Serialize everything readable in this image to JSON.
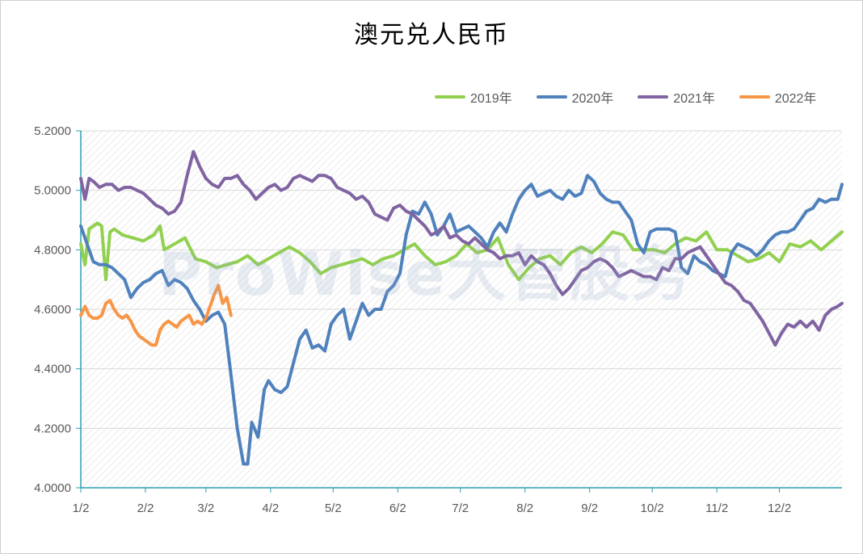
{
  "chart_data": {
    "type": "line",
    "title": "澳元兑人民币",
    "watermark": "ProWise大智股务",
    "xlabel": "",
    "ylabel": "",
    "ylim": [
      4.0,
      5.2
    ],
    "x_domain": [
      0,
      365
    ],
    "y_ticks": [
      "4.0000",
      "4.2000",
      "4.4000",
      "4.6000",
      "4.8000",
      "5.0000",
      "5.2000"
    ],
    "y_tick_values": [
      4.0,
      4.2,
      4.4,
      4.6,
      4.8,
      5.0,
      5.2
    ],
    "x_ticks": [
      "1/2",
      "2/2",
      "3/2",
      "4/2",
      "5/2",
      "6/2",
      "7/2",
      "8/2",
      "9/2",
      "10/2",
      "11/2",
      "12/2"
    ],
    "x_tick_days": [
      0,
      31,
      60,
      91,
      121,
      152,
      182,
      213,
      244,
      274,
      305,
      335
    ],
    "legend": "top-right",
    "series": [
      {
        "name": "2019年",
        "color": "#92d050",
        "x": [
          0,
          2,
          4,
          6,
          8,
          10,
          12,
          14,
          16,
          18,
          20,
          25,
          30,
          35,
          38,
          40,
          45,
          50,
          55,
          60,
          65,
          70,
          75,
          80,
          85,
          90,
          95,
          100,
          105,
          110,
          115,
          120,
          125,
          130,
          135,
          140,
          145,
          150,
          155,
          160,
          165,
          170,
          175,
          180,
          185,
          190,
          195,
          200,
          205,
          210,
          215,
          220,
          225,
          230,
          235,
          240,
          245,
          250,
          255,
          260,
          265,
          270,
          275,
          280,
          285,
          290,
          295,
          300,
          305,
          310,
          315,
          320,
          325,
          330,
          335,
          340,
          345,
          350,
          355,
          360,
          365
        ],
        "values": [
          4.82,
          4.75,
          4.87,
          4.88,
          4.89,
          4.88,
          4.7,
          4.86,
          4.87,
          4.86,
          4.85,
          4.84,
          4.83,
          4.85,
          4.88,
          4.8,
          4.82,
          4.84,
          4.77,
          4.76,
          4.74,
          4.75,
          4.76,
          4.78,
          4.75,
          4.77,
          4.79,
          4.81,
          4.79,
          4.76,
          4.72,
          4.74,
          4.75,
          4.76,
          4.77,
          4.75,
          4.77,
          4.78,
          4.8,
          4.82,
          4.78,
          4.75,
          4.76,
          4.78,
          4.82,
          4.79,
          4.8,
          4.84,
          4.75,
          4.7,
          4.74,
          4.77,
          4.78,
          4.75,
          4.79,
          4.81,
          4.79,
          4.82,
          4.86,
          4.85,
          4.8,
          4.8,
          4.8,
          4.79,
          4.82,
          4.84,
          4.83,
          4.86,
          4.8,
          4.8,
          4.78,
          4.76,
          4.77,
          4.79,
          4.76,
          4.82,
          4.81,
          4.83,
          4.8,
          4.83,
          4.86
        ]
      },
      {
        "name": "2020年",
        "color": "#4f81bd",
        "x": [
          0,
          3,
          6,
          9,
          12,
          15,
          18,
          21,
          24,
          27,
          30,
          33,
          36,
          39,
          42,
          45,
          48,
          51,
          54,
          57,
          60,
          63,
          66,
          69,
          72,
          75,
          78,
          80,
          82,
          85,
          88,
          90,
          93,
          96,
          99,
          102,
          105,
          108,
          111,
          114,
          117,
          120,
          123,
          126,
          129,
          132,
          135,
          138,
          141,
          144,
          147,
          150,
          153,
          156,
          159,
          162,
          165,
          168,
          171,
          174,
          177,
          180,
          183,
          186,
          189,
          192,
          195,
          198,
          201,
          204,
          207,
          210,
          213,
          216,
          219,
          222,
          225,
          228,
          231,
          234,
          237,
          240,
          243,
          246,
          249,
          252,
          255,
          258,
          261,
          264,
          267,
          270,
          273,
          276,
          279,
          282,
          285,
          288,
          291,
          294,
          297,
          300,
          303,
          306,
          309,
          312,
          315,
          318,
          321,
          324,
          327,
          330,
          333,
          336,
          339,
          342,
          345,
          348,
          351,
          354,
          357,
          360,
          363,
          365
        ],
        "values": [
          4.88,
          4.82,
          4.76,
          4.75,
          4.75,
          4.74,
          4.72,
          4.7,
          4.64,
          4.67,
          4.69,
          4.7,
          4.72,
          4.73,
          4.68,
          4.7,
          4.69,
          4.67,
          4.63,
          4.6,
          4.56,
          4.58,
          4.59,
          4.55,
          4.38,
          4.2,
          4.08,
          4.08,
          4.22,
          4.17,
          4.33,
          4.36,
          4.33,
          4.32,
          4.34,
          4.42,
          4.5,
          4.53,
          4.47,
          4.48,
          4.46,
          4.55,
          4.58,
          4.6,
          4.5,
          4.56,
          4.62,
          4.58,
          4.6,
          4.6,
          4.66,
          4.68,
          4.72,
          4.85,
          4.93,
          4.92,
          4.96,
          4.92,
          4.85,
          4.88,
          4.92,
          4.86,
          4.87,
          4.88,
          4.86,
          4.84,
          4.81,
          4.86,
          4.89,
          4.86,
          4.92,
          4.97,
          5.0,
          5.02,
          4.98,
          4.99,
          5.0,
          4.98,
          4.97,
          5.0,
          4.98,
          4.99,
          5.05,
          5.03,
          4.99,
          4.97,
          4.96,
          4.96,
          4.93,
          4.9,
          4.82,
          4.79,
          4.86,
          4.87,
          4.87,
          4.87,
          4.86,
          4.74,
          4.72,
          4.78,
          4.76,
          4.75,
          4.73,
          4.72,
          4.71,
          4.79,
          4.82,
          4.81,
          4.8,
          4.78,
          4.8,
          4.83,
          4.85,
          4.86,
          4.86,
          4.87,
          4.9,
          4.93,
          4.94,
          4.97,
          4.96,
          4.97,
          4.97,
          5.02
        ]
      },
      {
        "name": "2021年",
        "color": "#8064a2",
        "x": [
          0,
          2,
          4,
          6,
          9,
          12,
          15,
          18,
          21,
          24,
          27,
          30,
          33,
          36,
          39,
          42,
          45,
          48,
          51,
          54,
          57,
          60,
          63,
          66,
          69,
          72,
          75,
          78,
          81,
          84,
          87,
          90,
          93,
          96,
          99,
          102,
          105,
          108,
          111,
          114,
          117,
          120,
          123,
          126,
          129,
          132,
          135,
          138,
          141,
          144,
          147,
          150,
          153,
          156,
          159,
          162,
          165,
          168,
          171,
          174,
          177,
          180,
          183,
          186,
          189,
          192,
          195,
          198,
          201,
          204,
          207,
          210,
          213,
          216,
          219,
          222,
          225,
          228,
          231,
          234,
          237,
          240,
          243,
          246,
          249,
          252,
          255,
          258,
          261,
          264,
          267,
          270,
          273,
          276,
          279,
          282,
          285,
          288,
          291,
          294,
          297,
          300,
          303,
          306,
          309,
          312,
          315,
          318,
          321,
          324,
          327,
          330,
          333,
          336,
          339,
          342,
          345,
          348,
          351,
          354,
          357,
          360,
          363,
          365
        ],
        "values": [
          5.04,
          4.97,
          5.04,
          5.03,
          5.01,
          5.02,
          5.02,
          5.0,
          5.01,
          5.01,
          5.0,
          4.99,
          4.97,
          4.95,
          4.94,
          4.92,
          4.93,
          4.96,
          5.05,
          5.13,
          5.08,
          5.04,
          5.02,
          5.01,
          5.04,
          5.04,
          5.05,
          5.02,
          5.0,
          4.97,
          4.99,
          5.01,
          5.02,
          5.0,
          5.01,
          5.04,
          5.05,
          5.04,
          5.03,
          5.05,
          5.05,
          5.04,
          5.01,
          5.0,
          4.99,
          4.97,
          4.98,
          4.96,
          4.92,
          4.91,
          4.9,
          4.94,
          4.95,
          4.93,
          4.92,
          4.9,
          4.88,
          4.85,
          4.86,
          4.88,
          4.84,
          4.85,
          4.83,
          4.82,
          4.84,
          4.82,
          4.8,
          4.79,
          4.77,
          4.78,
          4.78,
          4.79,
          4.75,
          4.78,
          4.76,
          4.75,
          4.72,
          4.68,
          4.65,
          4.67,
          4.7,
          4.73,
          4.74,
          4.76,
          4.77,
          4.76,
          4.74,
          4.71,
          4.72,
          4.73,
          4.72,
          4.71,
          4.71,
          4.7,
          4.74,
          4.73,
          4.77,
          4.77,
          4.79,
          4.8,
          4.81,
          4.78,
          4.75,
          4.72,
          4.69,
          4.68,
          4.66,
          4.63,
          4.62,
          4.59,
          4.56,
          4.52,
          4.48,
          4.52,
          4.55,
          4.54,
          4.56,
          4.54,
          4.56,
          4.53,
          4.58,
          4.6,
          4.61,
          4.62
        ]
      },
      {
        "name": "2022年",
        "color": "#f79646",
        "x": [
          0,
          2,
          4,
          6,
          8,
          10,
          12,
          14,
          16,
          18,
          20,
          22,
          24,
          26,
          28,
          30,
          32,
          34,
          36,
          38,
          40,
          42,
          44,
          46,
          48,
          50,
          52,
          54,
          56,
          58,
          60,
          62,
          64,
          66,
          68,
          70,
          72
        ],
        "values": [
          4.58,
          4.61,
          4.58,
          4.57,
          4.57,
          4.58,
          4.62,
          4.63,
          4.6,
          4.58,
          4.57,
          4.58,
          4.56,
          4.53,
          4.51,
          4.5,
          4.49,
          4.48,
          4.48,
          4.53,
          4.55,
          4.56,
          4.55,
          4.54,
          4.56,
          4.57,
          4.58,
          4.55,
          4.56,
          4.55,
          4.57,
          4.61,
          4.65,
          4.68,
          4.62,
          4.64,
          4.58
        ]
      }
    ]
  }
}
